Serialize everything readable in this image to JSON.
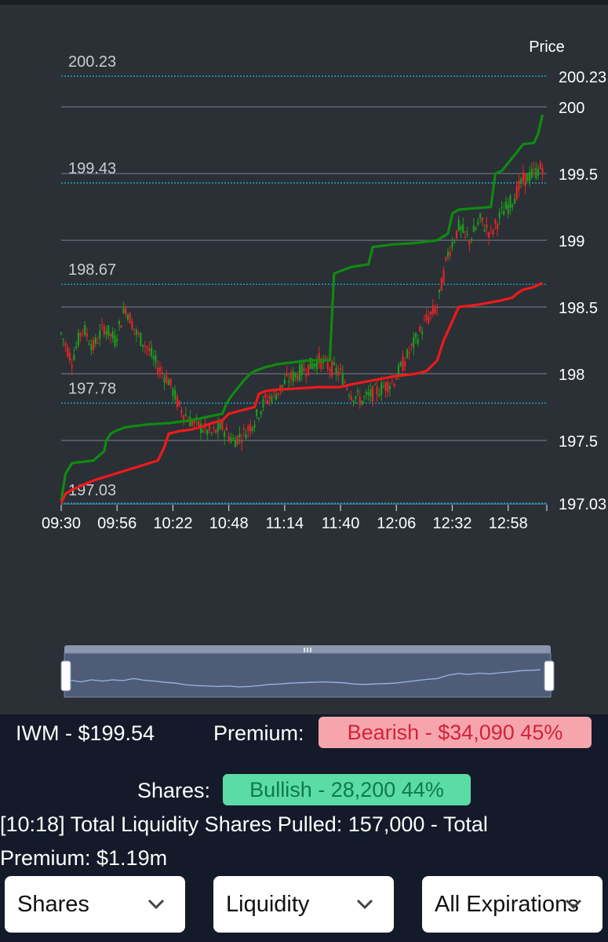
{
  "ticker_line": "IWM - $199.54",
  "premium": {
    "label": "Premium:",
    "value": "Bearish - $34,090 45%"
  },
  "shares": {
    "label": "Shares:",
    "value": "Bullish - 28,200 44%"
  },
  "summary_line1": "[10:18] Total Liquidity Shares Pulled: 157,000 - Total",
  "summary_line2": "Premium: $1.19m",
  "dropdowns": [
    {
      "value": "Shares",
      "icon": "chevron-down-icon"
    },
    {
      "value": "Liquidity",
      "icon": "chevron-down-icon"
    },
    {
      "value": "All Expirations",
      "icon": "chevron-down-icon"
    }
  ],
  "colors": {
    "background": "#2b2f36",
    "bullish": "#108a10",
    "bearish": "#ef1a1a",
    "candle_up": "#1e9c1e",
    "candle_down": "#e02626",
    "level_line": "#1aa6c8",
    "navigator_line": "#9bb4e6"
  },
  "chart_data": {
    "type": "line",
    "y_title": "Price",
    "ylim": [
      197.03,
      200.23
    ],
    "y_ticks": [
      197.5,
      198,
      198.5,
      199,
      199.5,
      200
    ],
    "x_ticks": [
      "09:30",
      "09:56",
      "10:22",
      "10:48",
      "11:14",
      "11:40",
      "12:06",
      "12:32",
      "12:58"
    ],
    "xlim": [
      "09:30",
      "13:16"
    ],
    "grid": true,
    "reference_levels": [
      {
        "value": 200.23,
        "label": "200.23",
        "axis_label": "200.23"
      },
      {
        "value": 199.43,
        "label": "199.43"
      },
      {
        "value": 198.67,
        "label": "198.67"
      },
      {
        "value": 197.78,
        "label": "197.78"
      },
      {
        "value": 197.03,
        "label": "197.03",
        "axis_label": "197.03"
      }
    ],
    "series": [
      {
        "color": "green",
        "x": [
          "09:30",
          "09:32",
          "09:35",
          "09:45",
          "09:50",
          "09:51",
          "09:53",
          "09:55",
          "10:00",
          "10:10",
          "10:20",
          "10:30",
          "10:45",
          "10:47",
          "10:50",
          "10:55",
          "10:58",
          "11:00",
          "11:05",
          "11:08",
          "11:10",
          "11:15",
          "11:25",
          "11:35",
          "11:37",
          "11:40",
          "11:45",
          "11:53",
          "11:55",
          "12:05",
          "12:15",
          "12:25",
          "12:30",
          "12:32",
          "12:35",
          "12:50",
          "12:52",
          "12:55",
          "13:00",
          "13:05",
          "13:10",
          "13:12",
          "13:14"
        ],
        "y": [
          197.05,
          197.25,
          197.33,
          197.35,
          197.42,
          197.5,
          197.55,
          197.57,
          197.6,
          197.62,
          197.63,
          197.65,
          197.7,
          197.78,
          197.85,
          197.95,
          198.0,
          198.02,
          198.05,
          198.06,
          198.07,
          198.08,
          198.1,
          198.1,
          198.75,
          198.77,
          198.8,
          198.82,
          198.95,
          198.97,
          198.98,
          199.0,
          199.05,
          199.2,
          199.23,
          199.25,
          199.5,
          199.52,
          199.62,
          199.72,
          199.73,
          199.8,
          199.94
        ]
      },
      {
        "color": "red",
        "x": [
          "09:30",
          "09:32",
          "09:35",
          "09:45",
          "09:55",
          "10:05",
          "10:15",
          "10:18",
          "10:20",
          "10:25",
          "10:30",
          "10:35",
          "10:40",
          "10:45",
          "10:48",
          "10:55",
          "11:00",
          "11:02",
          "11:05",
          "11:10",
          "11:20",
          "11:30",
          "11:40",
          "11:45",
          "11:55",
          "12:05",
          "12:15",
          "12:20",
          "12:25",
          "12:28",
          "12:30",
          "12:35",
          "12:45",
          "12:55",
          "13:00",
          "13:02",
          "13:05",
          "13:10",
          "13:14"
        ],
        "y": [
          197.03,
          197.1,
          197.13,
          197.2,
          197.25,
          197.3,
          197.35,
          197.45,
          197.55,
          197.57,
          197.58,
          197.6,
          197.63,
          197.65,
          197.7,
          197.73,
          197.75,
          197.85,
          197.87,
          197.88,
          197.89,
          197.9,
          197.9,
          197.92,
          197.95,
          197.98,
          198.0,
          198.02,
          198.1,
          198.25,
          198.32,
          198.5,
          198.52,
          198.55,
          198.57,
          198.6,
          198.63,
          198.65,
          198.68
        ]
      }
    ],
    "price_path": {
      "x": [
        "09:30",
        "09:35",
        "09:40",
        "09:45",
        "09:50",
        "09:55",
        "10:00",
        "10:05",
        "10:10",
        "10:15",
        "10:20",
        "10:25",
        "10:30",
        "10:35",
        "10:40",
        "10:45",
        "10:50",
        "10:55",
        "11:00",
        "11:05",
        "11:10",
        "11:15",
        "11:20",
        "11:25",
        "11:30",
        "11:35",
        "11:40",
        "11:45",
        "11:50",
        "11:55",
        "12:00",
        "12:05",
        "12:10",
        "12:15",
        "12:20",
        "12:25",
        "12:30",
        "12:35",
        "12:40",
        "12:45",
        "12:50",
        "12:55",
        "13:00",
        "13:05",
        "13:10",
        "13:14"
      ],
      "y": [
        198.3,
        198.1,
        198.35,
        198.2,
        198.35,
        198.25,
        198.5,
        198.3,
        198.2,
        198.05,
        197.95,
        197.75,
        197.65,
        197.6,
        197.55,
        197.6,
        197.5,
        197.55,
        197.65,
        197.8,
        197.85,
        197.95,
        198.0,
        198.05,
        198.1,
        198.05,
        198.0,
        197.85,
        197.8,
        197.85,
        197.9,
        197.95,
        198.1,
        198.25,
        198.4,
        198.5,
        198.9,
        199.1,
        199.0,
        199.15,
        199.05,
        199.2,
        199.3,
        199.45,
        199.5,
        199.55
      ]
    }
  },
  "navigator": {
    "handle_icon": "grip-icon",
    "range": [
      "09:30",
      "13:16"
    ]
  }
}
